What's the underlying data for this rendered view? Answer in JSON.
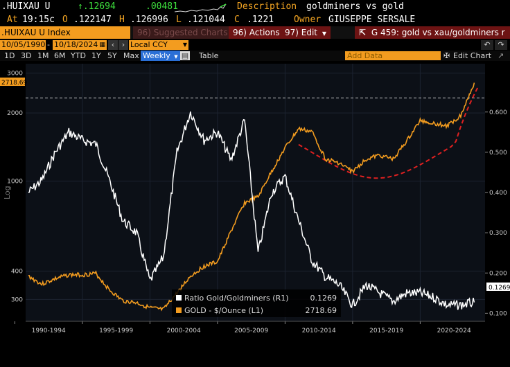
{
  "ticker": {
    "symbol": ".HUIXAU U",
    "last": "↑.12694",
    "change": ".00481",
    "desc_label": "Description",
    "desc_value": "goldminers vs gold",
    "at_label": "At",
    "time": "19:15c",
    "o_label": "O",
    "open": ".122147",
    "h_label": "H",
    "high": ".126996",
    "l_label": "L",
    "low": ".121044",
    "c_label": "C",
    "close": ".1221",
    "owner_label": "Owner",
    "owner": "GIUSEPPE SERSALE"
  },
  "cmdbar": {
    "security": ".HUIXAU U Index",
    "suggested": "96) Suggested Charts",
    "actions": "96) Actions",
    "edit": "97) Edit",
    "graph_title": "G 459: gold vs xau/goldminers r"
  },
  "datebar": {
    "start": "10/05/1990",
    "end": "10/18/2024",
    "currency": "Local CCY"
  },
  "rangebar": {
    "ranges": [
      "1D",
      "3D",
      "1M",
      "6M",
      "YTD",
      "1Y",
      "5Y",
      "Max"
    ],
    "period": "Weekly",
    "table": "Table",
    "add_data": "Add Data",
    "edit_chart": "Edit Chart"
  },
  "colors": {
    "gold": "#f39c1f",
    "ratio": "#ffffff",
    "trend": "#e02020"
  },
  "chart_data": {
    "type": "line",
    "xlabel": "",
    "ylabel_left": "Log",
    "x_ticks": [
      "1990-1994",
      "1995-1999",
      "2000-2004",
      "2005-2009",
      "2010-2014",
      "2015-2019",
      "2020-2024"
    ],
    "left_ticks": [
      "3000",
      "2000",
      "1000",
      "400",
      "300"
    ],
    "right_ticks": [
      "0.600",
      "0.500",
      "0.400",
      "0.300",
      "0.200",
      "0.100"
    ],
    "last_left": "2718.69",
    "last_right": "0.1269",
    "series": [
      {
        "name": "Ratio Gold/Goldminers (R1)",
        "last_value": "0.1269",
        "axis": "right",
        "points": [
          [
            1991,
            0.4
          ],
          [
            1992,
            0.43
          ],
          [
            1993,
            0.5
          ],
          [
            1994,
            0.55
          ],
          [
            1995,
            0.53
          ],
          [
            1996,
            0.52
          ],
          [
            1997,
            0.43
          ],
          [
            1998,
            0.33
          ],
          [
            1999,
            0.3
          ],
          [
            2000,
            0.18
          ],
          [
            2001,
            0.24
          ],
          [
            2002,
            0.5
          ],
          [
            2003,
            0.6
          ],
          [
            2004,
            0.53
          ],
          [
            2005,
            0.55
          ],
          [
            2006,
            0.48
          ],
          [
            2007,
            0.58
          ],
          [
            2008,
            0.25
          ],
          [
            2009,
            0.4
          ],
          [
            2010,
            0.44
          ],
          [
            2011,
            0.33
          ],
          [
            2012,
            0.23
          ],
          [
            2013,
            0.19
          ],
          [
            2014,
            0.17
          ],
          [
            2015,
            0.12
          ],
          [
            2016,
            0.17
          ],
          [
            2017,
            0.15
          ],
          [
            2018,
            0.13
          ],
          [
            2019,
            0.15
          ],
          [
            2020,
            0.15
          ],
          [
            2021,
            0.14
          ],
          [
            2022,
            0.12
          ],
          [
            2023,
            0.12
          ],
          [
            2024,
            0.127
          ]
        ]
      },
      {
        "name": "GOLD - $/Ounce (L1)",
        "last_value": "2718.69",
        "axis": "left",
        "points": [
          [
            1991,
            380
          ],
          [
            1992,
            350
          ],
          [
            1993,
            370
          ],
          [
            1994,
            385
          ],
          [
            1995,
            385
          ],
          [
            1996,
            390
          ],
          [
            1997,
            330
          ],
          [
            1998,
            295
          ],
          [
            1999,
            290
          ],
          [
            2000,
            275
          ],
          [
            2001,
            270
          ],
          [
            2002,
            320
          ],
          [
            2003,
            380
          ],
          [
            2004,
            420
          ],
          [
            2005,
            440
          ],
          [
            2006,
            600
          ],
          [
            2007,
            800
          ],
          [
            2008,
            850
          ],
          [
            2009,
            1100
          ],
          [
            2010,
            1400
          ],
          [
            2011,
            1700
          ],
          [
            2012,
            1650
          ],
          [
            2013,
            1250
          ],
          [
            2014,
            1200
          ],
          [
            2015,
            1100
          ],
          [
            2016,
            1250
          ],
          [
            2017,
            1300
          ],
          [
            2018,
            1250
          ],
          [
            2019,
            1500
          ],
          [
            2020,
            1850
          ],
          [
            2021,
            1800
          ],
          [
            2022,
            1750
          ],
          [
            2023,
            1950
          ],
          [
            2024,
            2718.69
          ]
        ]
      }
    ],
    "ylim_left": [
      240,
      3300
    ],
    "ylim_right": [
      0.08,
      0.72
    ],
    "xlim": [
      1990.8,
      2024.8
    ],
    "grid": true,
    "legend_position": "bottom-center"
  }
}
